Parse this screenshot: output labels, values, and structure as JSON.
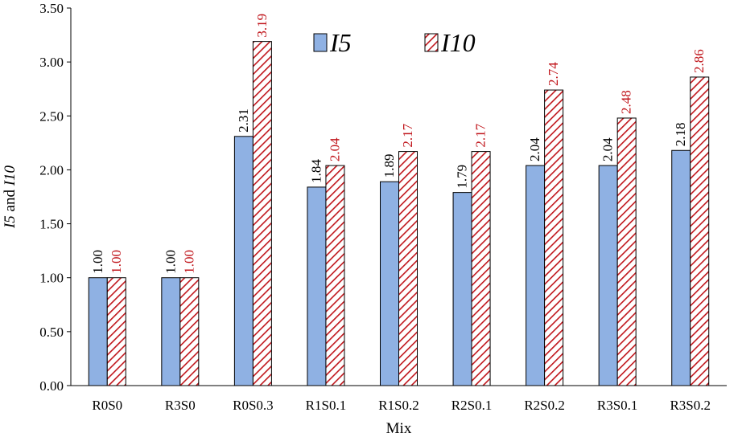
{
  "chart_data": {
    "type": "bar",
    "title": "",
    "xlabel": "Mix",
    "ylabel_parts": [
      "I5",
      " and ",
      "I10"
    ],
    "categories": [
      "R0S0",
      "R3S0",
      "R0S0.3",
      "R1S0.1",
      "R1S0.2",
      "R2S0.1",
      "R2S0.2",
      "R3S0.1",
      "R3S0.2"
    ],
    "series": [
      {
        "name": "I5",
        "values": [
          1.0,
          1.0,
          2.31,
          1.84,
          1.89,
          1.79,
          2.04,
          2.04,
          2.18
        ],
        "labels": [
          "1.00",
          "1.00",
          "2.31",
          "1.84",
          "1.89",
          "1.79",
          "2.04",
          "2.04",
          "2.18"
        ],
        "fill": "#8fb1e3",
        "label_color": "#000000"
      },
      {
        "name": "I10",
        "values": [
          1.0,
          1.0,
          3.19,
          2.04,
          2.17,
          2.17,
          2.74,
          2.48,
          2.86
        ],
        "labels": [
          "1.00",
          "1.00",
          "3.19",
          "2.04",
          "2.17",
          "2.17",
          "2.74",
          "2.48",
          "2.86"
        ],
        "fill": "hatch",
        "hatch_color": "#c0151b",
        "label_color": "#c0151b"
      }
    ],
    "ylim": [
      0,
      3.5
    ],
    "yticks": [
      "0.00",
      "0.50",
      "1.00",
      "1.50",
      "2.00",
      "2.50",
      "3.00",
      "3.50"
    ],
    "grid": false,
    "legend_position": "top-center"
  }
}
